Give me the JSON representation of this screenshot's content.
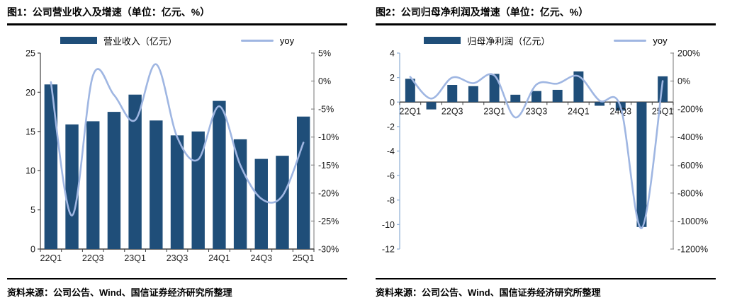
{
  "colors": {
    "bar": "#1F4E79",
    "line": "#9FB6E2",
    "axis_dark": "#404040",
    "axis_gray": "#8C8C8C",
    "axis_light_blue": "#95B3D7",
    "label_text": "#1A1A1A"
  },
  "panels": [
    {
      "title": "图1：公司营业收入及增速（单位：亿元、%）",
      "legend": [
        {
          "label": "营业收入（亿元）"
        },
        {
          "label": "yoy"
        }
      ],
      "source_label": "资料来源：",
      "source_text": "公司公告、Wind、国信证券经济研究所整理"
    },
    {
      "title": "图2：公司归母净利润及增速（单位：亿元、%）",
      "legend": [
        {
          "label": "归母净利润（亿元）"
        },
        {
          "label": "yoy"
        }
      ],
      "source_label": "资料来源：",
      "source_text": "公司公告、Wind、国信证券经济研究所整理"
    }
  ],
  "chart_data": [
    {
      "type": "bar",
      "subtype": "bar+line dual axis",
      "title": "公司营业收入及增速（单位：亿元、%）",
      "categories": [
        "22Q1",
        "22Q2",
        "22Q3",
        "22Q4",
        "23Q1",
        "23Q2",
        "23Q3",
        "23Q4",
        "24Q1",
        "24Q2",
        "24Q3",
        "24Q4",
        "25Q1"
      ],
      "x_tick_label_indices": [
        0,
        2,
        4,
        6,
        8,
        10,
        12
      ],
      "series": [
        {
          "name": "营业收入（亿元）",
          "type": "bar",
          "axis": "left",
          "values": [
            21.0,
            15.9,
            16.3,
            17.5,
            19.7,
            16.4,
            14.5,
            15.0,
            18.9,
            14.0,
            11.5,
            11.9,
            16.9
          ]
        },
        {
          "name": "yoy",
          "type": "line",
          "axis": "right",
          "values": [
            -0.2,
            -24,
            1,
            -2.5,
            -7,
            3,
            -10,
            -14,
            -4.5,
            -15,
            -21,
            -20.5,
            -11
          ]
        }
      ],
      "left_axis": {
        "min": 0,
        "max": 25,
        "step": 5,
        "suffix": ""
      },
      "right_axis": {
        "min": -30,
        "max": 5,
        "step": 5,
        "suffix": "%"
      },
      "legend_position": "top",
      "grid": false
    },
    {
      "type": "bar",
      "subtype": "bar+line dual axis",
      "title": "公司归母净利润及增速（单位：亿元、%）",
      "categories": [
        "22Q1",
        "22Q2",
        "22Q3",
        "22Q4",
        "23Q1",
        "23Q2",
        "23Q3",
        "23Q4",
        "24Q1",
        "24Q2",
        "24Q3",
        "24Q4",
        "25Q1"
      ],
      "x_tick_label_indices": [
        0,
        2,
        4,
        6,
        8,
        10,
        12
      ],
      "series": [
        {
          "name": "归母净利润（亿元）",
          "type": "bar",
          "axis": "left",
          "values": [
            1.9,
            -0.6,
            1.4,
            1.3,
            2.3,
            0.6,
            0.9,
            1.0,
            2.5,
            -0.3,
            -0.7,
            -10.2,
            2.1
          ]
        },
        {
          "name": "yoy",
          "type": "line",
          "axis": "right",
          "values": [
            30,
            -125,
            25,
            -15,
            40,
            -260,
            -25,
            -18,
            35,
            -140,
            -185,
            -1050,
            0
          ]
        }
      ],
      "left_axis": {
        "min": -12,
        "max": 4,
        "step": 2,
        "suffix": ""
      },
      "right_axis": {
        "min": -1200,
        "max": 200,
        "step": 200,
        "suffix": "%"
      },
      "legend_position": "top",
      "grid": false
    }
  ]
}
